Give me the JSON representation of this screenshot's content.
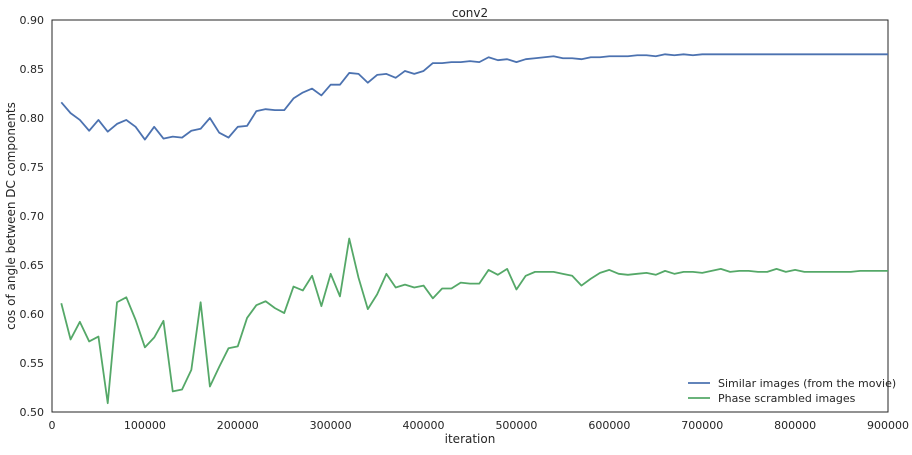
{
  "chart_data": {
    "type": "line",
    "title": "conv2",
    "xlabel": "iteration",
    "ylabel": "cos of angle between DC components",
    "xlim": [
      0,
      900000
    ],
    "ylim": [
      0.5,
      0.9
    ],
    "xticks": [
      0,
      100000,
      200000,
      300000,
      400000,
      500000,
      600000,
      700000,
      800000,
      900000
    ],
    "xtick_labels": [
      "0",
      "100000",
      "200000",
      "300000",
      "400000",
      "500000",
      "600000",
      "700000",
      "800000",
      "900000"
    ],
    "yticks": [
      0.5,
      0.55,
      0.6,
      0.65,
      0.7,
      0.75,
      0.8,
      0.85,
      0.9
    ],
    "ytick_labels": [
      "0.50",
      "0.55",
      "0.60",
      "0.65",
      "0.70",
      "0.75",
      "0.80",
      "0.85",
      "0.90"
    ],
    "grid": false,
    "legend_position": "lower-right",
    "x": [
      10000,
      20000,
      30000,
      40000,
      50000,
      60000,
      70000,
      80000,
      90000,
      100000,
      110000,
      120000,
      130000,
      140000,
      150000,
      160000,
      170000,
      180000,
      190000,
      200000,
      210000,
      220000,
      230000,
      240000,
      250000,
      260000,
      270000,
      280000,
      290000,
      300000,
      310000,
      320000,
      330000,
      340000,
      350000,
      360000,
      370000,
      380000,
      390000,
      400000,
      410000,
      420000,
      430000,
      440000,
      450000,
      460000,
      470000,
      480000,
      490000,
      500000,
      510000,
      520000,
      530000,
      540000,
      550000,
      560000,
      570000,
      580000,
      590000,
      600000,
      610000,
      620000,
      630000,
      640000,
      650000,
      660000,
      670000,
      680000,
      690000,
      700000,
      710000,
      720000,
      730000,
      740000,
      750000,
      760000,
      770000,
      780000,
      790000,
      800000,
      810000,
      820000,
      830000,
      840000,
      850000,
      860000,
      870000,
      880000,
      890000,
      900000
    ],
    "series": [
      {
        "name": "Similar images (from the movie)",
        "color": "#4c72b0",
        "values": [
          0.816,
          0.805,
          0.798,
          0.787,
          0.798,
          0.786,
          0.794,
          0.798,
          0.791,
          0.778,
          0.791,
          0.779,
          0.781,
          0.78,
          0.787,
          0.789,
          0.8,
          0.785,
          0.78,
          0.791,
          0.792,
          0.807,
          0.809,
          0.808,
          0.808,
          0.82,
          0.826,
          0.83,
          0.823,
          0.834,
          0.834,
          0.846,
          0.845,
          0.836,
          0.844,
          0.845,
          0.841,
          0.848,
          0.845,
          0.848,
          0.856,
          0.856,
          0.857,
          0.857,
          0.858,
          0.857,
          0.862,
          0.859,
          0.86,
          0.857,
          0.86,
          0.861,
          0.862,
          0.863,
          0.861,
          0.861,
          0.86,
          0.862,
          0.862,
          0.863,
          0.863,
          0.863,
          0.864,
          0.864,
          0.863,
          0.865,
          0.864,
          0.865,
          0.864,
          0.865,
          0.865,
          0.865,
          0.865,
          0.865,
          0.865,
          0.865,
          0.865,
          0.865,
          0.865,
          0.865,
          0.865,
          0.865,
          0.865,
          0.865,
          0.865,
          0.865,
          0.865,
          0.865,
          0.865,
          0.865
        ]
      },
      {
        "name": "Phase scrambled images",
        "color": "#55a868",
        "values": [
          0.611,
          0.574,
          0.592,
          0.572,
          0.577,
          0.509,
          0.612,
          0.617,
          0.594,
          0.566,
          0.576,
          0.593,
          0.521,
          0.523,
          0.543,
          0.612,
          0.526,
          0.546,
          0.565,
          0.567,
          0.596,
          0.609,
          0.613,
          0.606,
          0.601,
          0.628,
          0.624,
          0.639,
          0.608,
          0.641,
          0.618,
          0.677,
          0.637,
          0.605,
          0.62,
          0.641,
          0.627,
          0.63,
          0.627,
          0.629,
          0.616,
          0.626,
          0.626,
          0.632,
          0.631,
          0.631,
          0.645,
          0.64,
          0.646,
          0.625,
          0.639,
          0.643,
          0.643,
          0.643,
          0.641,
          0.639,
          0.629,
          0.636,
          0.642,
          0.645,
          0.641,
          0.64,
          0.641,
          0.642,
          0.64,
          0.644,
          0.641,
          0.643,
          0.643,
          0.642,
          0.644,
          0.646,
          0.643,
          0.644,
          0.644,
          0.643,
          0.643,
          0.646,
          0.643,
          0.645,
          0.643,
          0.643,
          0.643,
          0.643,
          0.643,
          0.643,
          0.644,
          0.644,
          0.644,
          0.644
        ]
      }
    ]
  }
}
